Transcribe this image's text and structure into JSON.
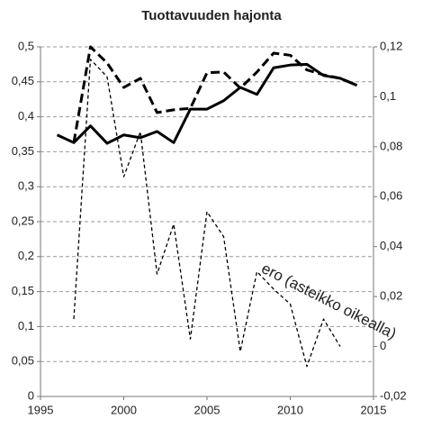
{
  "chart_data": {
    "type": "line",
    "title": "Tuottavuuden hajonta",
    "annotation": "ero (asteikko oikealla)",
    "xlim": [
      1995,
      2015
    ],
    "xticks": [
      1995,
      2000,
      2005,
      2010,
      2015
    ],
    "ylim": [
      0,
      0.5
    ],
    "yticks": [
      {
        "value": 0,
        "label": "0"
      },
      {
        "value": 0.05,
        "label": "0,05"
      },
      {
        "value": 0.1,
        "label": "0,1"
      },
      {
        "value": 0.15,
        "label": "0,15"
      },
      {
        "value": 0.2,
        "label": "0,2"
      },
      {
        "value": 0.25,
        "label": "0,25"
      },
      {
        "value": 0.3,
        "label": "0,3"
      },
      {
        "value": 0.35,
        "label": "0,35"
      },
      {
        "value": 0.4,
        "label": "0,4"
      },
      {
        "value": 0.45,
        "label": "0,45"
      },
      {
        "value": 0.5,
        "label": "0,5"
      }
    ],
    "y2lim": [
      -0.02,
      0.12
    ],
    "y2ticks": [
      {
        "value": -0.02,
        "label": "-0,02"
      },
      {
        "value": 0,
        "label": "0"
      },
      {
        "value": 0.02,
        "label": "0,02"
      },
      {
        "value": 0.04,
        "label": "0,04"
      },
      {
        "value": 0.06,
        "label": "0,06"
      },
      {
        "value": 0.08,
        "label": "0,08"
      },
      {
        "value": 0.1,
        "label": "0,1"
      },
      {
        "value": 0.12,
        "label": "0,12"
      }
    ],
    "grid": true,
    "series": [
      {
        "color": "#000000",
        "style": "solid",
        "width": 3,
        "x": [
          1996,
          1997,
          1998,
          1999,
          2000,
          2001,
          2002,
          2003,
          2004,
          2005,
          2006,
          2007,
          2008,
          2009,
          2010,
          2011,
          2012,
          2013,
          2014
        ],
        "values": [
          0.374,
          0.363,
          0.387,
          0.362,
          0.374,
          0.37,
          0.379,
          0.363,
          0.411,
          0.411,
          0.423,
          0.442,
          0.432,
          0.47,
          0.474,
          0.475,
          0.459,
          0.455,
          0.445
        ]
      },
      {
        "color": "#000000",
        "style": "dashed",
        "width": 3,
        "x": [
          1997,
          1998,
          1999,
          2000,
          2001,
          2002,
          2003,
          2004,
          2005,
          2006,
          2007,
          2008,
          2009,
          2010,
          2011,
          2012,
          2013,
          2014
        ],
        "values": [
          0.363,
          0.5,
          0.477,
          0.442,
          0.455,
          0.406,
          0.41,
          0.412,
          0.463,
          0.464,
          0.441,
          0.464,
          0.491,
          0.488,
          0.467,
          0.46,
          0.455,
          0.445
        ]
      },
      {
        "color": "#000000",
        "style": "dashed",
        "width": 1.3,
        "axis": "y2",
        "x": [
          1997,
          1998,
          1999,
          2000,
          2001,
          2002,
          2003,
          2004,
          2005,
          2006,
          2007,
          2008,
          2009,
          2010,
          2011,
          2012,
          2013
        ],
        "values": [
          0.011,
          0.115,
          0.108,
          0.068,
          0.086,
          0.029,
          0.049,
          0.003,
          0.054,
          0.044,
          -0.002,
          0.03,
          0.023,
          0.017,
          -0.008,
          0.011,
          0.0
        ]
      }
    ]
  }
}
